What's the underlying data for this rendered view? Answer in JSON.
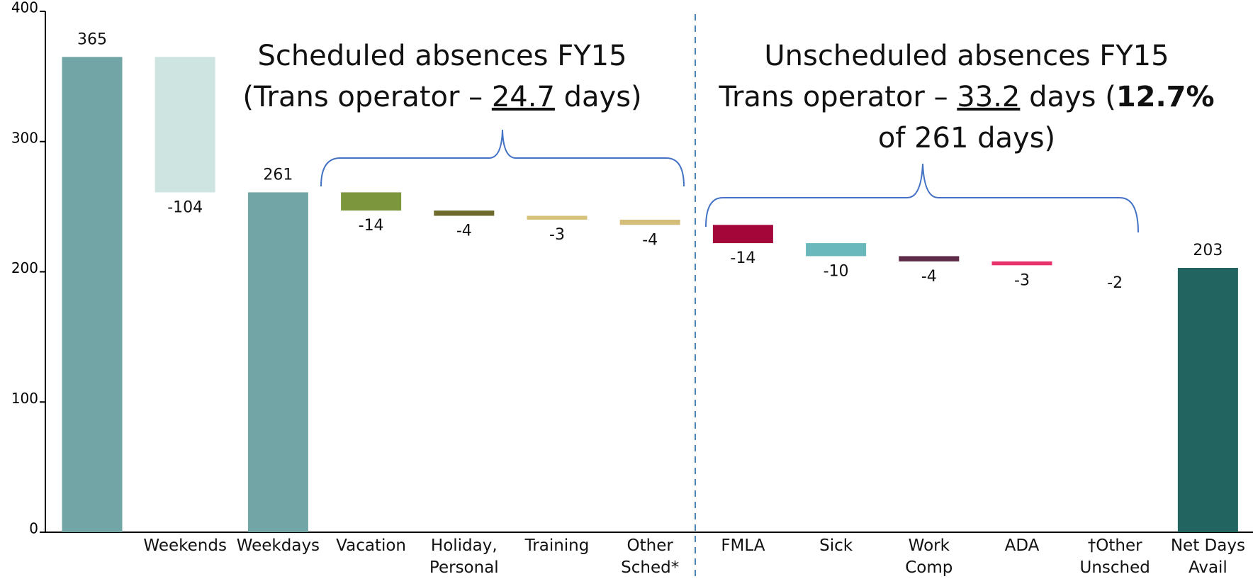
{
  "chart_data": {
    "type": "waterfall",
    "categories": [
      null,
      "Weekends",
      "Weekdays",
      "Vacation",
      "Holiday,\nPersonal",
      "Training",
      "Other\nSched*",
      "FMLA",
      "Sick",
      "Work\nComp",
      "ADA",
      "†Other\nUnsched",
      "Net Days\nAvail"
    ],
    "values": [
      365,
      -104,
      261,
      -14,
      -4,
      -3,
      -4,
      -14,
      -10,
      -4,
      -3,
      -2,
      203
    ],
    "measures": [
      "absolute",
      "relative",
      "total",
      "relative",
      "relative",
      "relative",
      "relative",
      "relative",
      "relative",
      "relative",
      "relative",
      "relative",
      "total"
    ],
    "colors": [
      "#72a6a6",
      "#cde4e1",
      "#72a6a6",
      "#7b963c",
      "#6d6a2c",
      "#d6c27a",
      "#d4bd79",
      "#a5063a",
      "#6ab8bc",
      "#5d2a47",
      "#e8346c",
      "#ffffff",
      "#226460"
    ],
    "ylim": [
      0,
      400
    ],
    "yticks": [
      0,
      100,
      200,
      300,
      400
    ],
    "annotations": {
      "scheduled": {
        "line1": "Scheduled absences FY15",
        "pre": "(Trans operator – ",
        "days": "24.7",
        "post": " days)"
      },
      "unscheduled": {
        "line1": "Unscheduled absences FY15",
        "pre": "Trans operator – ",
        "days": "33.2",
        "mid": " days (",
        "pct": "12.7%",
        "post": "of 261 days)"
      }
    }
  }
}
